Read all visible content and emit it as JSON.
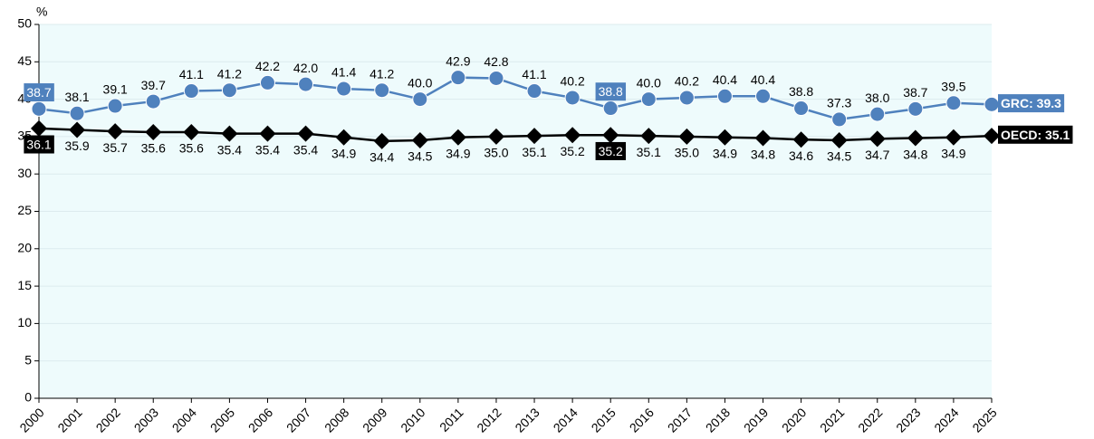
{
  "chart_data": {
    "type": "line",
    "y_unit": "%",
    "categories": [
      "2000",
      "2001",
      "2002",
      "2003",
      "2004",
      "2005",
      "2006",
      "2007",
      "2008",
      "2009",
      "2010",
      "2011",
      "2012",
      "2013",
      "2014",
      "2015",
      "2016",
      "2017",
      "2018",
      "2019",
      "2020",
      "2021",
      "2022",
      "2023",
      "2024",
      "2025"
    ],
    "ylim": [
      0,
      50
    ],
    "yticks": [
      0,
      5,
      10,
      15,
      20,
      25,
      30,
      35,
      40,
      45,
      50
    ],
    "grid": true,
    "plot_background": "#eefbfc",
    "highlight_indices": [
      0,
      15
    ],
    "series": [
      {
        "name": "GRC",
        "color": "#4f81bd",
        "marker": "circle",
        "label_side": "above",
        "values": [
          38.7,
          38.1,
          39.1,
          39.7,
          41.1,
          41.2,
          42.2,
          42.0,
          41.4,
          41.2,
          40.0,
          42.9,
          42.8,
          41.1,
          40.2,
          38.8,
          40.0,
          40.2,
          40.4,
          40.4,
          38.8,
          37.3,
          38.0,
          38.7,
          39.5,
          39.3
        ],
        "value_labels": [
          "38.7",
          "38.1",
          "39.1",
          "39.7",
          "41.1",
          "41.2",
          "42.2",
          "42.0",
          "41.4",
          "41.2",
          "40.0",
          "42.9",
          "42.8",
          "41.1",
          "40.2",
          "38.8",
          "40.0",
          "40.2",
          "40.4",
          "40.4",
          "38.8",
          "37.3",
          "38.0",
          "38.7",
          "39.5",
          "GRC: 39.3"
        ]
      },
      {
        "name": "OECD",
        "color": "#000000",
        "marker": "diamond",
        "label_side": "below",
        "values": [
          36.1,
          35.9,
          35.7,
          35.6,
          35.6,
          35.4,
          35.4,
          35.4,
          34.9,
          34.4,
          34.5,
          34.9,
          35.0,
          35.1,
          35.2,
          35.2,
          35.1,
          35.0,
          34.9,
          34.8,
          34.6,
          34.5,
          34.7,
          34.8,
          34.9,
          35.1
        ],
        "value_labels": [
          "36.1",
          "35.9",
          "35.7",
          "35.6",
          "35.6",
          "35.4",
          "35.4",
          "35.4",
          "34.9",
          "34.4",
          "34.5",
          "34.9",
          "35.0",
          "35.1",
          "35.2",
          "35.2",
          "35.1",
          "35.0",
          "34.9",
          "34.8",
          "34.6",
          "34.5",
          "34.7",
          "34.8",
          "34.9",
          "OECD: 35.1"
        ]
      }
    ]
  }
}
